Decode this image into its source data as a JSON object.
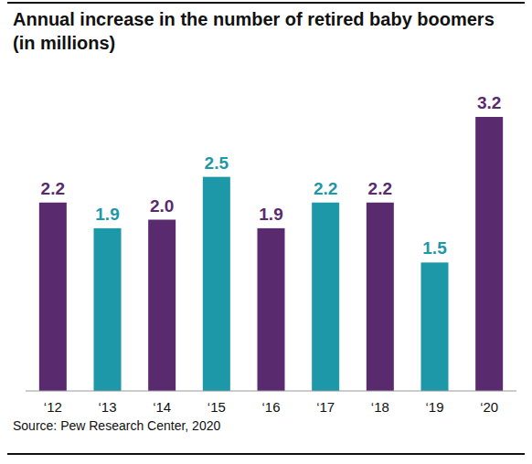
{
  "chart_data": {
    "type": "bar",
    "title": "Annual increase in the number of retired baby boomers (in millions)",
    "source": "Source: Pew Research Center, 2020",
    "categories": [
      "‘12",
      "‘13",
      "‘14",
      "‘15",
      "‘16",
      "‘17",
      "‘18",
      "‘19",
      "‘20"
    ],
    "values": [
      2.2,
      1.9,
      2.0,
      2.5,
      1.9,
      2.2,
      2.2,
      1.5,
      3.2
    ],
    "value_labels": [
      "2.2",
      "1.9",
      "2.0",
      "2.5",
      "1.9",
      "2.2",
      "2.2",
      "1.5",
      "3.2"
    ],
    "colors": [
      "#5a2a6e",
      "#1d98a8",
      "#5a2a6e",
      "#1d98a8",
      "#5a2a6e",
      "#1d98a8",
      "#5a2a6e",
      "#1d98a8",
      "#5a2a6e"
    ],
    "ylim": [
      0,
      3.2
    ],
    "grid": false,
    "data_labels": true,
    "tick_labels": "x"
  }
}
